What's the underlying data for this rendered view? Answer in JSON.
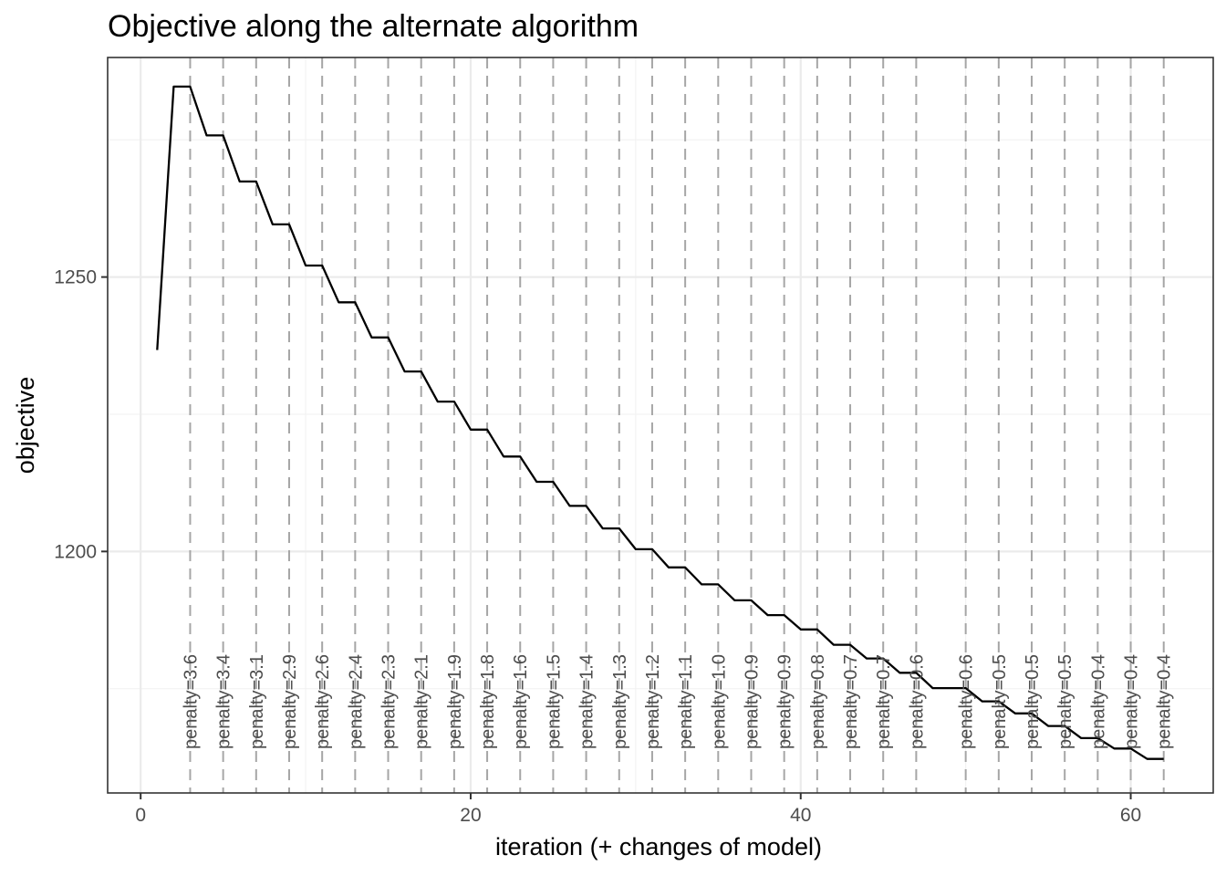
{
  "chart_data": {
    "type": "line",
    "title": "Objective along the alternate algorithm",
    "xlabel": "iteration (+ changes of model)",
    "ylabel": "objective",
    "xlim": [
      -2,
      65
    ],
    "ylim": [
      1156,
      1290
    ],
    "x_ticks": [
      0,
      20,
      40,
      60
    ],
    "y_ticks": [
      1200,
      1250
    ],
    "grid": true,
    "series": [
      {
        "x": [
          1,
          2,
          3,
          4,
          5,
          6,
          7,
          8,
          9,
          10,
          11,
          12,
          13,
          14,
          15,
          16,
          17,
          18,
          19,
          20,
          21,
          22,
          23,
          24,
          25,
          26,
          27,
          28,
          29,
          30,
          31,
          32,
          33,
          34,
          35,
          36,
          37,
          38,
          39,
          40,
          41,
          42,
          43,
          44,
          45,
          46,
          47,
          48,
          49,
          50,
          51,
          52,
          53,
          54,
          55,
          56,
          57,
          58,
          59,
          60,
          61,
          62
        ],
        "values": [
          1236.7,
          1284.7,
          1284.7,
          1275.8,
          1275.8,
          1267.4,
          1267.4,
          1259.6,
          1259.6,
          1252.1,
          1252.1,
          1245.4,
          1245.4,
          1239.0,
          1239.0,
          1232.8,
          1232.8,
          1227.3,
          1227.3,
          1222.2,
          1222.2,
          1217.3,
          1217.3,
          1212.7,
          1212.7,
          1208.3,
          1208.3,
          1204.2,
          1204.2,
          1200.4,
          1200.4,
          1197.1,
          1197.1,
          1194.0,
          1194.0,
          1191.1,
          1191.1,
          1188.4,
          1188.4,
          1185.8,
          1185.8,
          1183.0,
          1183.0,
          1180.5,
          1180.5,
          1177.9,
          1177.9,
          1175.1,
          1175.1,
          1175.1,
          1172.7,
          1172.7,
          1170.5,
          1170.5,
          1168.2,
          1168.2,
          1166.0,
          1166.0,
          1164.1,
          1164.1,
          1162.2,
          1162.2
        ]
      }
    ],
    "annotations": [
      {
        "x": 3,
        "label": "penalty=3.6"
      },
      {
        "x": 5,
        "label": "penalty=3.4"
      },
      {
        "x": 7,
        "label": "penalty=3.1"
      },
      {
        "x": 9,
        "label": "penalty=2.9"
      },
      {
        "x": 11,
        "label": "penalty=2.6"
      },
      {
        "x": 13,
        "label": "penalty=2.4"
      },
      {
        "x": 15,
        "label": "penalty=2.3"
      },
      {
        "x": 17,
        "label": "penalty=2.1"
      },
      {
        "x": 19,
        "label": "penalty=1.9"
      },
      {
        "x": 21,
        "label": "penalty=1.8"
      },
      {
        "x": 23,
        "label": "penalty=1.6"
      },
      {
        "x": 25,
        "label": "penalty=1.5"
      },
      {
        "x": 27,
        "label": "penalty=1.4"
      },
      {
        "x": 29,
        "label": "penalty=1.3"
      },
      {
        "x": 31,
        "label": "penalty=1.2"
      },
      {
        "x": 33,
        "label": "penalty=1.1"
      },
      {
        "x": 35,
        "label": "penalty=1.0"
      },
      {
        "x": 37,
        "label": "penalty=0.9"
      },
      {
        "x": 39,
        "label": "penalty=0.9"
      },
      {
        "x": 41,
        "label": "penalty=0.8"
      },
      {
        "x": 43,
        "label": "penalty=0.7"
      },
      {
        "x": 45,
        "label": "penalty=0.7"
      },
      {
        "x": 47,
        "label": "penalty=0.6"
      },
      {
        "x": 50,
        "label": "penalty=0.6"
      },
      {
        "x": 52,
        "label": "penalty=0.5"
      },
      {
        "x": 54,
        "label": "penalty=0.5"
      },
      {
        "x": 56,
        "label": "penalty=0.5"
      },
      {
        "x": 58,
        "label": "penalty=0.4"
      },
      {
        "x": 60,
        "label": "penalty=0.4"
      },
      {
        "x": 62,
        "label": "penalty=0.4"
      }
    ]
  }
}
